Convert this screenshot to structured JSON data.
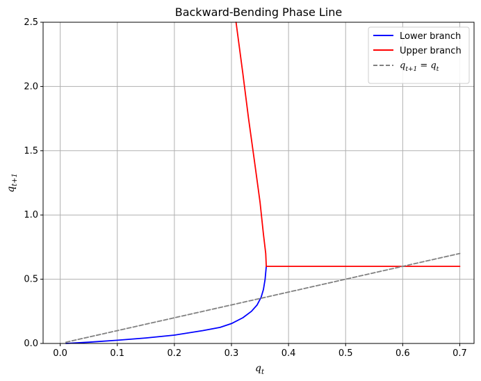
{
  "chart_data": {
    "type": "line",
    "title": "Backward-Bending Phase Line",
    "xlabel": "q_t",
    "ylabel": "q_{t+1}",
    "xlim": [
      -0.03,
      0.725
    ],
    "ylim": [
      0,
      2.5
    ],
    "xticks": [
      "0.0",
      "0.1",
      "0.2",
      "0.3",
      "0.4",
      "0.5",
      "0.6",
      "0.7"
    ],
    "yticks": [
      "0.0",
      "0.5",
      "1.0",
      "1.5",
      "2.0",
      "2.5"
    ],
    "grid": true,
    "legend_position": "top-right",
    "series": [
      {
        "name": "Lower branch",
        "color": "#0000ff",
        "style": "solid",
        "x": [
          0.01,
          0.05,
          0.1,
          0.15,
          0.2,
          0.25,
          0.28,
          0.3,
          0.32,
          0.335,
          0.345,
          0.352,
          0.356,
          0.359,
          0.361
        ],
        "y": [
          0.0,
          0.01,
          0.025,
          0.043,
          0.065,
          0.1,
          0.125,
          0.155,
          0.2,
          0.25,
          0.3,
          0.36,
          0.42,
          0.5,
          0.6
        ]
      },
      {
        "name": "Upper branch",
        "color": "#ff0000",
        "style": "solid",
        "x": [
          0.308,
          0.32,
          0.33,
          0.34,
          0.35,
          0.356,
          0.36,
          0.361,
          0.7
        ],
        "y": [
          2.5,
          2.1,
          1.75,
          1.43,
          1.1,
          0.85,
          0.7,
          0.6,
          0.6
        ]
      },
      {
        "name": "q_{t+1} = q_t",
        "color": "#808080",
        "style": "dashed",
        "x": [
          0.01,
          0.7
        ],
        "y": [
          0.01,
          0.7
        ]
      }
    ]
  },
  "legend_labels": {
    "lower": "Lower branch",
    "upper": "Upper branch",
    "identity_q": "q",
    "identity_sub1": "t+1",
    "identity_eq": " = ",
    "identity_sub2": "t"
  },
  "axis_text": {
    "x_main": "q",
    "x_sub": "t",
    "y_main": "q",
    "y_sub": "t+1"
  }
}
